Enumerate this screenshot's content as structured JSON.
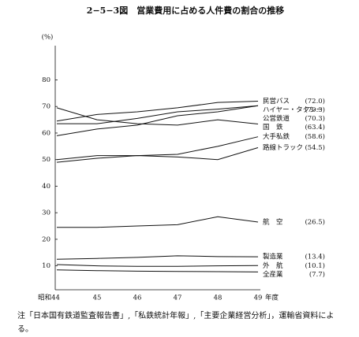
{
  "chart_data": {
    "type": "line",
    "title": "2−5−3図　営業費用に占める人件費の割合の推移",
    "ylabel": "(%)",
    "xlabel": "年度",
    "categories": [
      "昭和44",
      "45",
      "46",
      "47",
      "48",
      "49"
    ],
    "ylim": [
      1,
      92
    ],
    "yticks": [
      10,
      20,
      30,
      40,
      50,
      60,
      70,
      80
    ],
    "color": "#111111",
    "series": [
      {
        "name": "民営バス",
        "color": "#111111",
        "values": [
          64.5,
          67,
          68,
          69.5,
          71.5,
          72.0
        ],
        "value_labels": [
          null,
          null,
          null,
          null,
          null,
          "(72.0)"
        ]
      },
      {
        "name": "ハイヤー・タクシー",
        "color": "#111111",
        "values": [
          63.5,
          63.5,
          65.5,
          68,
          69,
          70.3
        ],
        "value_labels": [
          null,
          null,
          null,
          null,
          null,
          "(70.3)"
        ]
      },
      {
        "name": "公営鉄道",
        "color": "#111111",
        "values": [
          59,
          61.5,
          63,
          66.5,
          68,
          70.3
        ],
        "value_labels": [
          null,
          null,
          null,
          null,
          null,
          "(70.3)"
        ]
      },
      {
        "name": "国　鉄",
        "color": "#111111",
        "values": [
          69.5,
          65,
          63.5,
          63,
          65,
          63.4
        ],
        "value_labels": [
          null,
          null,
          null,
          null,
          null,
          "(63.4)"
        ]
      },
      {
        "name": "大手私鉄",
        "color": "#111111",
        "values": [
          50,
          51.5,
          51.5,
          52,
          55,
          58.6
        ],
        "value_labels": [
          null,
          null,
          null,
          null,
          null,
          "(58.6)"
        ]
      },
      {
        "name": "路線トラック",
        "color": "#111111",
        "values": [
          49,
          50.5,
          51.5,
          51,
          50,
          54.5
        ],
        "value_labels": [
          null,
          null,
          null,
          null,
          null,
          "(54.5)"
        ]
      },
      {
        "name": "航　空",
        "color": "#111111",
        "values": [
          24.5,
          24.5,
          25,
          25.5,
          28.5,
          26.5
        ],
        "value_labels": [
          null,
          null,
          null,
          null,
          null,
          "(26.5)"
        ]
      },
      {
        "name": "製造業",
        "color": "#111111",
        "values": [
          12.5,
          12.8,
          13.2,
          13.8,
          13.5,
          13.4
        ],
        "value_labels": [
          null,
          null,
          null,
          null,
          null,
          "(13.4)"
        ]
      },
      {
        "name": "外　航",
        "color": "#111111",
        "values": [
          10.5,
          10,
          9.8,
          9.8,
          10,
          10.1
        ],
        "value_labels": [
          null,
          null,
          null,
          null,
          null,
          "(10.1)"
        ]
      },
      {
        "name": "全産業",
        "color": "#111111",
        "values": [
          8.5,
          8.2,
          8.0,
          7.9,
          7.8,
          7.7
        ],
        "value_labels": [
          null,
          null,
          null,
          null,
          null,
          "(7.7)"
        ]
      }
    ],
    "note": "注「日本国有鉄道監査報告書」,「私鉄統計年報」,「主要企業経営分析」，運輸省資料による。"
  }
}
